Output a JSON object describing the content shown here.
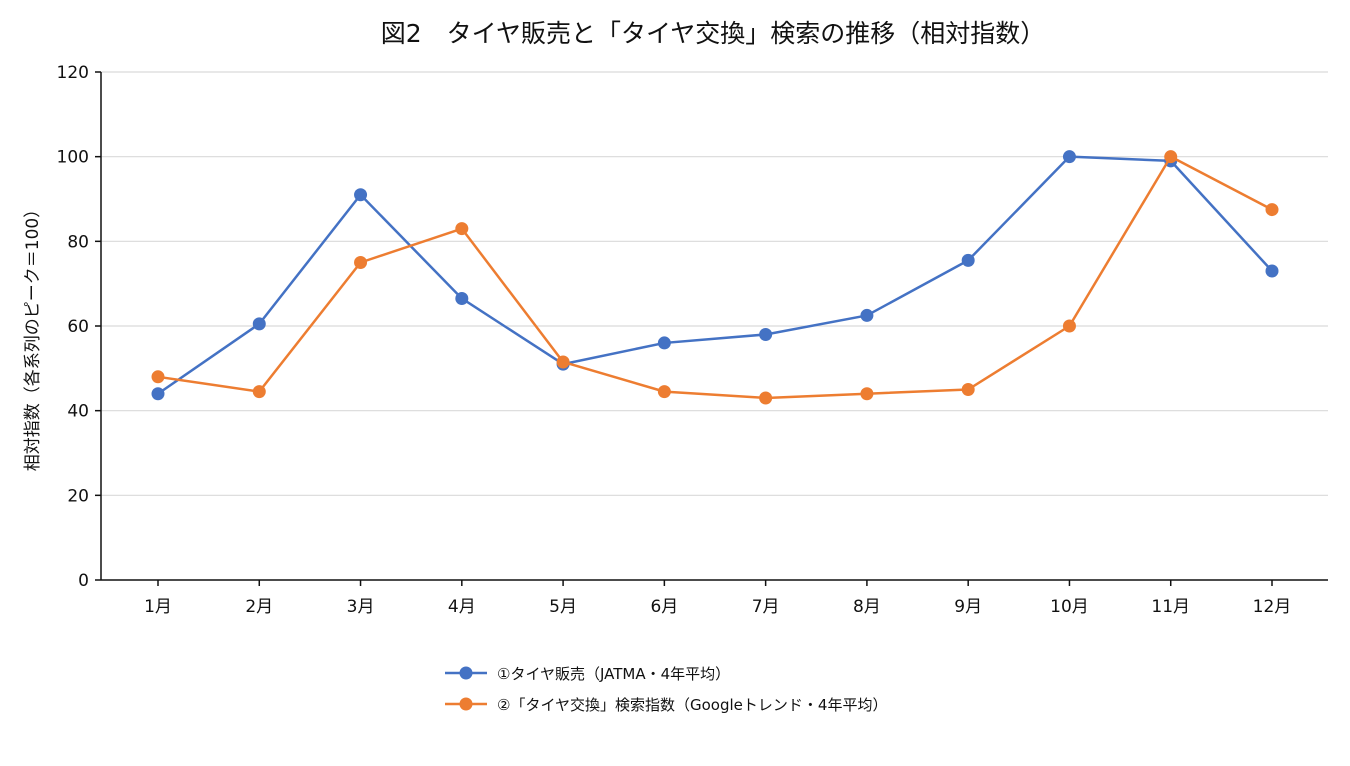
{
  "chart_data": {
    "type": "line",
    "title": "図2　タイヤ販売と「タイヤ交換」検索の推移（相対指数）",
    "xlabel": "",
    "ylabel": "相対指数（各系列のピーク＝100）",
    "categories": [
      "1月",
      "2月",
      "3月",
      "4月",
      "5月",
      "6月",
      "7月",
      "8月",
      "9月",
      "10月",
      "11月",
      "12月"
    ],
    "ylim": [
      0,
      120
    ],
    "yticks": [
      "0",
      "20",
      "40",
      "60",
      "80",
      "100",
      "120"
    ],
    "grid": true,
    "legend_position": "bottom-center",
    "series": [
      {
        "name": "①タイヤ販売（JATMA・4年平均）",
        "color": "#4472C4",
        "values": [
          44,
          60.5,
          91,
          66.5,
          51,
          56,
          58,
          62.5,
          75.5,
          100,
          99,
          73
        ]
      },
      {
        "name": "②「タイヤ交換」検索指数（Googleトレンド・4年平均）",
        "color": "#ED7D31",
        "values": [
          48,
          44.5,
          75,
          83,
          51.5,
          44.5,
          43,
          44,
          45,
          60,
          100,
          87.5
        ]
      }
    ]
  }
}
